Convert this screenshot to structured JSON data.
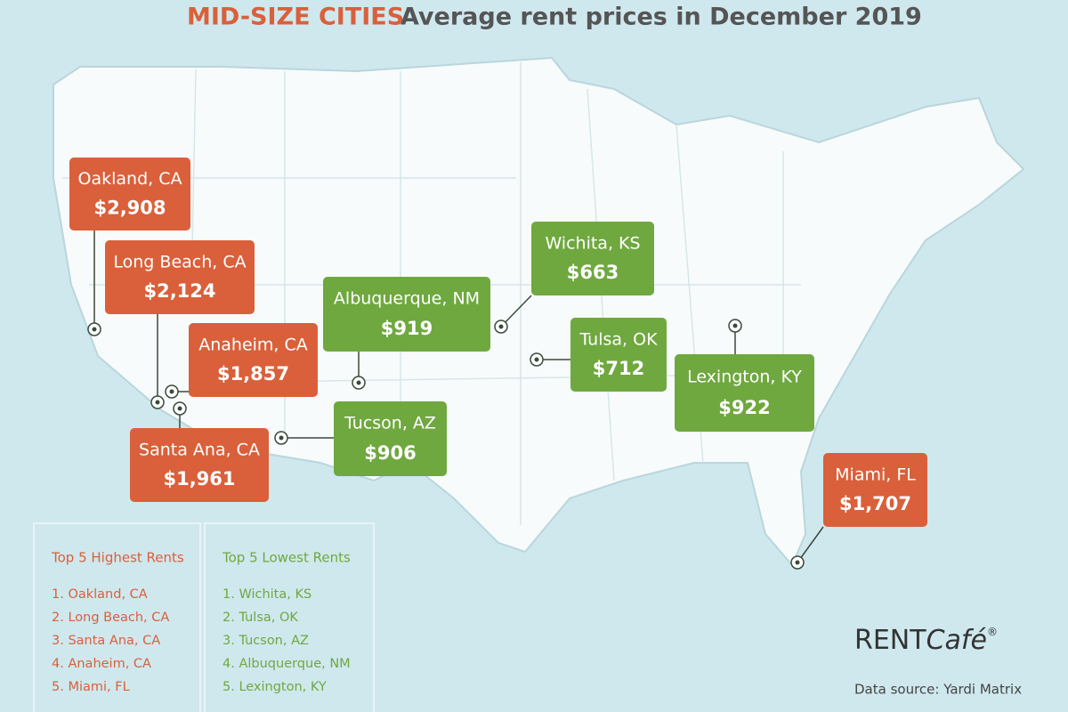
{
  "header": {
    "highlight": "MID-SIZE CITIES",
    "title": "Average rent prices in December 2019"
  },
  "highest": [
    {
      "name": "Oakland, CA",
      "rent": "$2,908"
    },
    {
      "name": "Long Beach, CA",
      "rent": "$2,124"
    },
    {
      "name": "Anaheim, CA",
      "rent": "$1,857"
    },
    {
      "name": "Santa Ana, CA",
      "rent": "$1,961"
    },
    {
      "name": "Miami, FL",
      "rent": "$1,707"
    }
  ],
  "lowest": [
    {
      "name": "Wichita, KS",
      "rent": "$663"
    },
    {
      "name": "Tulsa, OK",
      "rent": "$712"
    },
    {
      "name": "Tucson, AZ",
      "rent": "$906"
    },
    {
      "name": "Albuquerque, NM",
      "rent": "$919"
    },
    {
      "name": "Lexington, KY",
      "rent": "$922"
    }
  ],
  "top_highest": {
    "title": "Top 5 Highest Rents",
    "items": [
      "1. Oakland, CA",
      "2. Long Beach, CA",
      "3. Santa Ana, CA",
      "4. Anaheim, CA",
      "5. Miami, FL"
    ]
  },
  "top_lowest": {
    "title": "Top 5 Lowest Rents",
    "items": [
      "1. Wichita, KS",
      "2. Tulsa, OK",
      "3. Tucson, AZ",
      "4. Albuquerque, NM",
      "5. Lexington, KY"
    ]
  },
  "brand": {
    "rent": "RENT",
    "cafe": "Café",
    "mark": "®"
  },
  "source": "Data source:  Yardi Matrix"
}
